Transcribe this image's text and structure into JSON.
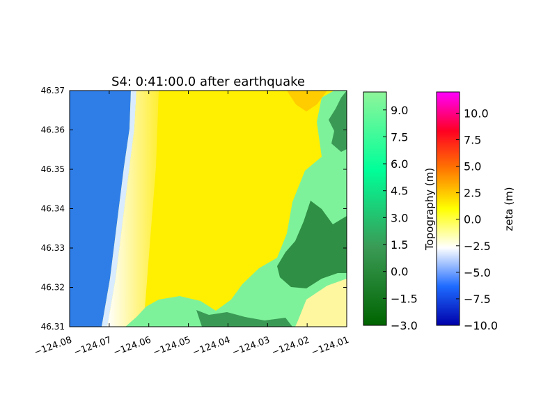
{
  "chart_data": [
    {
      "type": "heatmap",
      "title": "S4: 0:41:00.0 after earthquake",
      "xlim": [
        -124.08,
        -124.01
      ],
      "ylim": [
        46.31,
        46.37
      ],
      "x_ticks": [
        -124.08,
        -124.07,
        -124.06,
        -124.05,
        -124.04,
        -124.03,
        -124.02,
        -124.01
      ],
      "x_tick_labels": [
        "−124.08",
        "−124.07",
        "−124.06",
        "−124.05",
        "−124.04",
        "−124.03",
        "−124.02",
        "−124.01"
      ],
      "y_ticks": [
        46.31,
        46.32,
        46.33,
        46.34,
        46.35,
        46.36,
        46.37
      ],
      "y_tick_labels": [
        "46.31",
        "46.32",
        "46.33",
        "46.34",
        "46.35",
        "46.36",
        "46.37"
      ],
      "regions": [
        {
          "name": "ocean",
          "color": "#2f7ee8"
        },
        {
          "name": "flooded-land",
          "color": "#ffee00"
        },
        {
          "name": "dry-land",
          "color": "#7ef29a"
        }
      ],
      "grid": false
    }
  ],
  "colorbars": [
    {
      "label": "Topography (m)",
      "range": [
        -3.0,
        10.0
      ],
      "ticks": [
        -3.0,
        -1.5,
        0.0,
        1.5,
        3.0,
        4.5,
        6.0,
        7.5,
        9.0
      ],
      "tick_labels": [
        "−3.0",
        "−1.5",
        "0.0",
        "1.5",
        "3.0",
        "4.5",
        "6.0",
        "7.5",
        "9.0"
      ],
      "colors": [
        "#006400",
        "#3a9a55",
        "#00ff99",
        "#8ff59a"
      ]
    },
    {
      "label": "zeta (m)",
      "range": [
        -10.0,
        12.0
      ],
      "ticks": [
        -10.0,
        -7.5,
        -5.0,
        -2.5,
        0.0,
        2.5,
        5.0,
        7.5,
        10.0
      ],
      "tick_labels": [
        "−10.0",
        "−7.5",
        "−5.0",
        "−2.5",
        "0.0",
        "2.5",
        "5.0",
        "7.5",
        "10.0"
      ],
      "colors": [
        "#0000aa",
        "#1e6bff",
        "#ffffff",
        "#ffff00",
        "#ff7a00",
        "#ff0022",
        "#ff00ff"
      ]
    }
  ]
}
